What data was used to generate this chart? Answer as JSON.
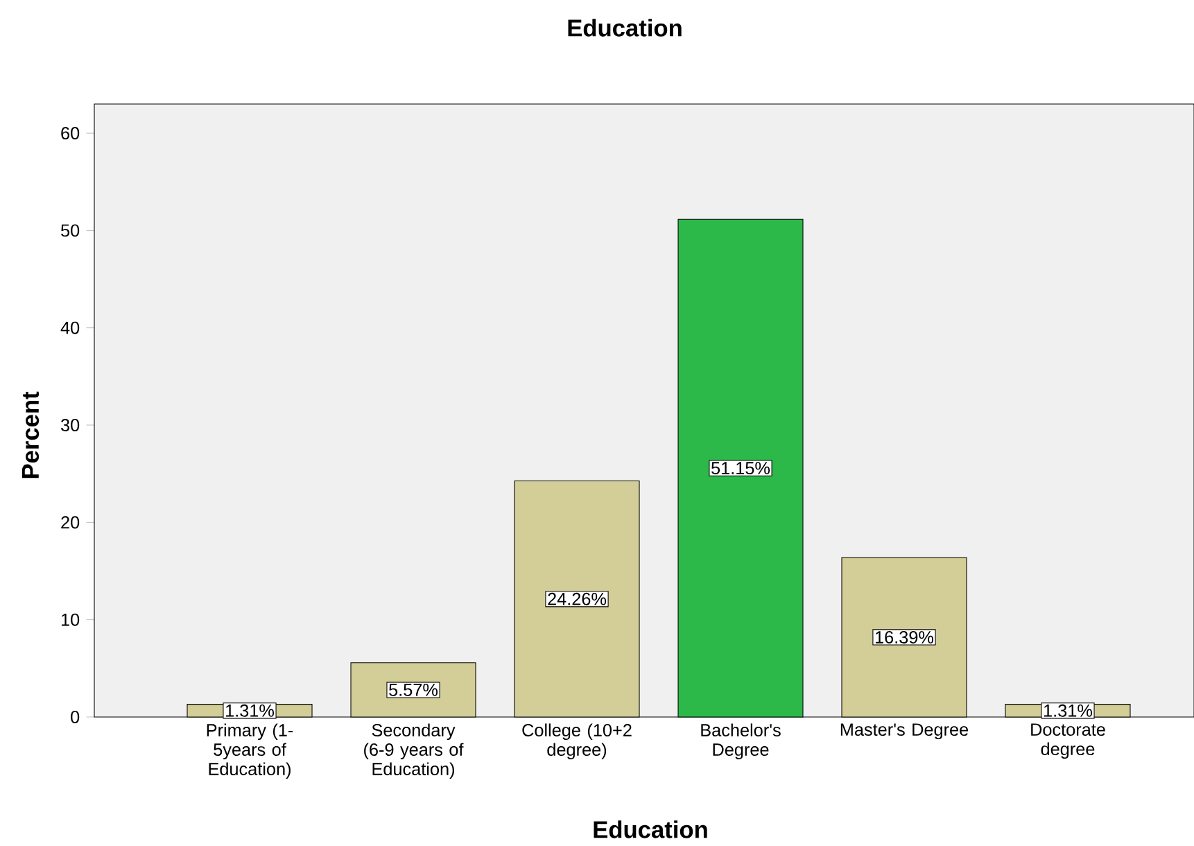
{
  "chart_data": {
    "type": "bar",
    "title": "Education",
    "xlabel": "Education",
    "ylabel": "Percent",
    "categories": [
      "Primary (1-5years of Education)",
      "Secondary (6-9 years of Education)",
      "College (10+2 degree)",
      "Bachelor's Degree",
      "Master's Degree",
      "Doctorate degree"
    ],
    "values": [
      1.31,
      5.57,
      24.26,
      51.15,
      16.39,
      1.31
    ],
    "colors": [
      "#d3ce97",
      "#d3ce97",
      "#d3ce97",
      "#2db84a",
      "#d3ce97",
      "#d3ce97"
    ],
    "value_labels": [
      "1.31%",
      "5.57%",
      "24.26%",
      "51.15%",
      "16.39%",
      "1.31%"
    ],
    "ylim": [
      0,
      63
    ],
    "yticks": [
      0,
      10,
      20,
      30,
      40,
      50,
      60
    ]
  }
}
